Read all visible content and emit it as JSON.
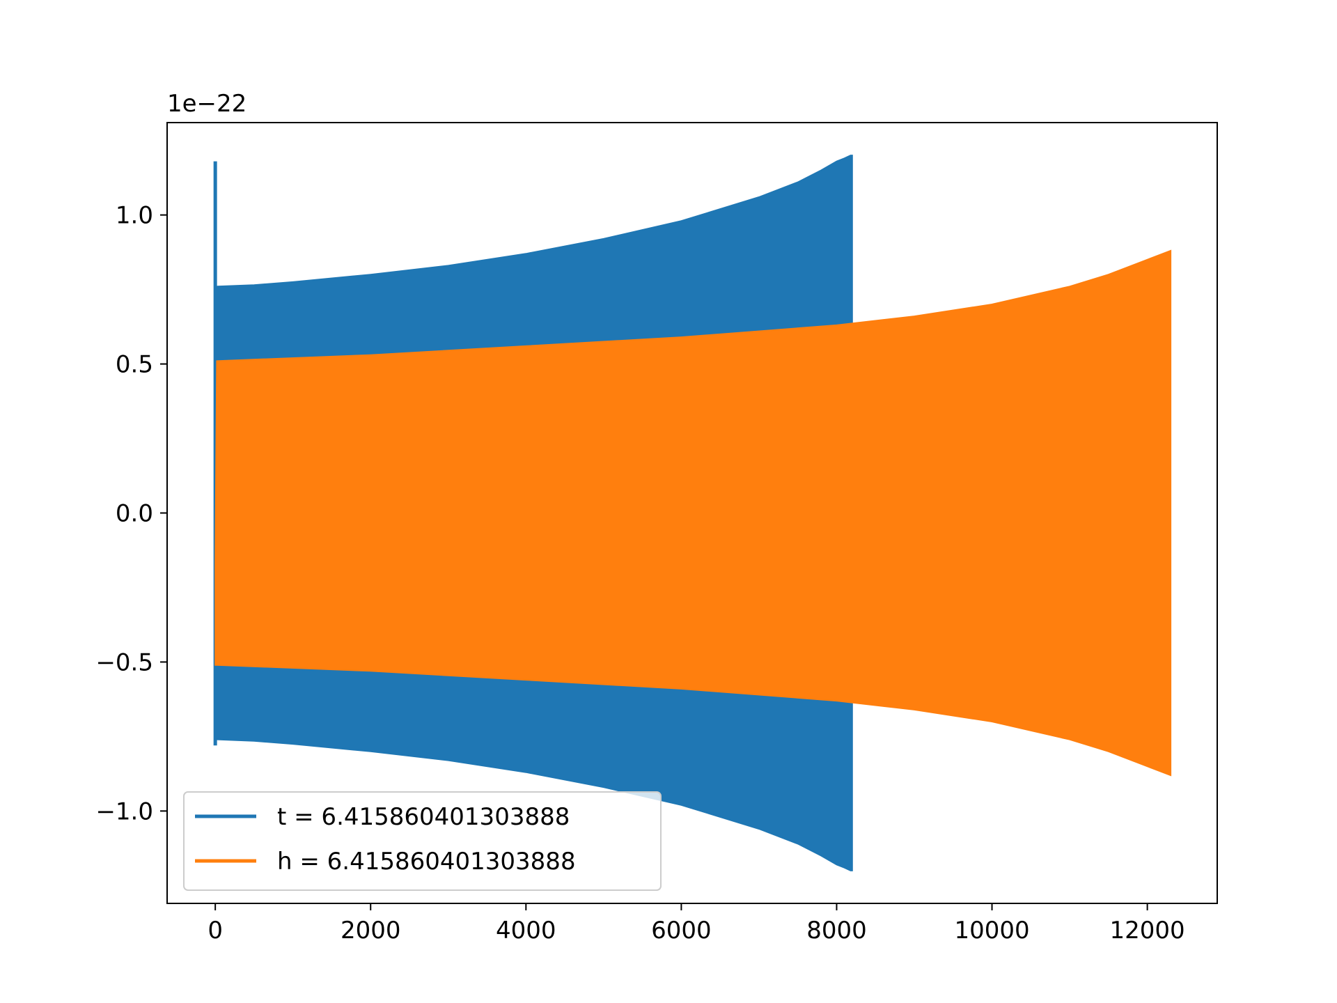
{
  "chart_data": {
    "type": "area",
    "title": "",
    "xlabel": "",
    "ylabel": "",
    "y_offset_label": "1e−22",
    "xlim": [
      -620,
      12900
    ],
    "ylim": [
      -1.31,
      1.31
    ],
    "x_ticks": [
      {
        "value": 0,
        "label": "0"
      },
      {
        "value": 2000,
        "label": "2000"
      },
      {
        "value": 4000,
        "label": "4000"
      },
      {
        "value": 6000,
        "label": "6000"
      },
      {
        "value": 8000,
        "label": "8000"
      },
      {
        "value": 10000,
        "label": "10000"
      },
      {
        "value": 12000,
        "label": "12000"
      }
    ],
    "y_ticks": [
      {
        "value": 1.0,
        "label": "1.0"
      },
      {
        "value": 0.5,
        "label": "0.5"
      },
      {
        "value": 0.0,
        "label": "0.0"
      },
      {
        "value": -0.5,
        "label": "−0.5"
      },
      {
        "value": -1.0,
        "label": "−1.0"
      }
    ],
    "grid": false,
    "legend_position": "lower-left",
    "series": [
      {
        "name": "t = 6.415860401303888",
        "color": "#1f77b4",
        "spike": {
          "x": 0,
          "top": 1.18,
          "bottom": -0.78
        },
        "envelope": {
          "x": [
            30,
            500,
            1000,
            2000,
            3000,
            4000,
            5000,
            6000,
            6500,
            7000,
            7500,
            7800,
            8000,
            8100,
            8180,
            8200
          ],
          "upper": [
            0.76,
            0.765,
            0.775,
            0.8,
            0.83,
            0.87,
            0.92,
            0.98,
            1.02,
            1.06,
            1.11,
            1.15,
            1.18,
            1.19,
            1.2,
            1.2
          ],
          "lower": [
            -0.76,
            -0.765,
            -0.775,
            -0.8,
            -0.83,
            -0.87,
            -0.92,
            -0.98,
            -1.02,
            -1.06,
            -1.11,
            -1.15,
            -1.18,
            -1.19,
            -1.2,
            -1.2
          ]
        }
      },
      {
        "name": "h = 6.415860401303888",
        "color": "#ff7f0e",
        "envelope": {
          "x": [
            0,
            20,
            2000,
            4000,
            6000,
            8000,
            9000,
            10000,
            11000,
            11500,
            12000,
            12300
          ],
          "upper": [
            -0.18,
            0.51,
            0.53,
            0.56,
            0.59,
            0.63,
            0.66,
            0.7,
            0.76,
            0.8,
            0.85,
            0.88
          ],
          "lower": [
            -0.51,
            -0.51,
            -0.53,
            -0.56,
            -0.59,
            -0.63,
            -0.66,
            -0.7,
            -0.76,
            -0.8,
            -0.85,
            -0.88
          ]
        }
      }
    ]
  }
}
